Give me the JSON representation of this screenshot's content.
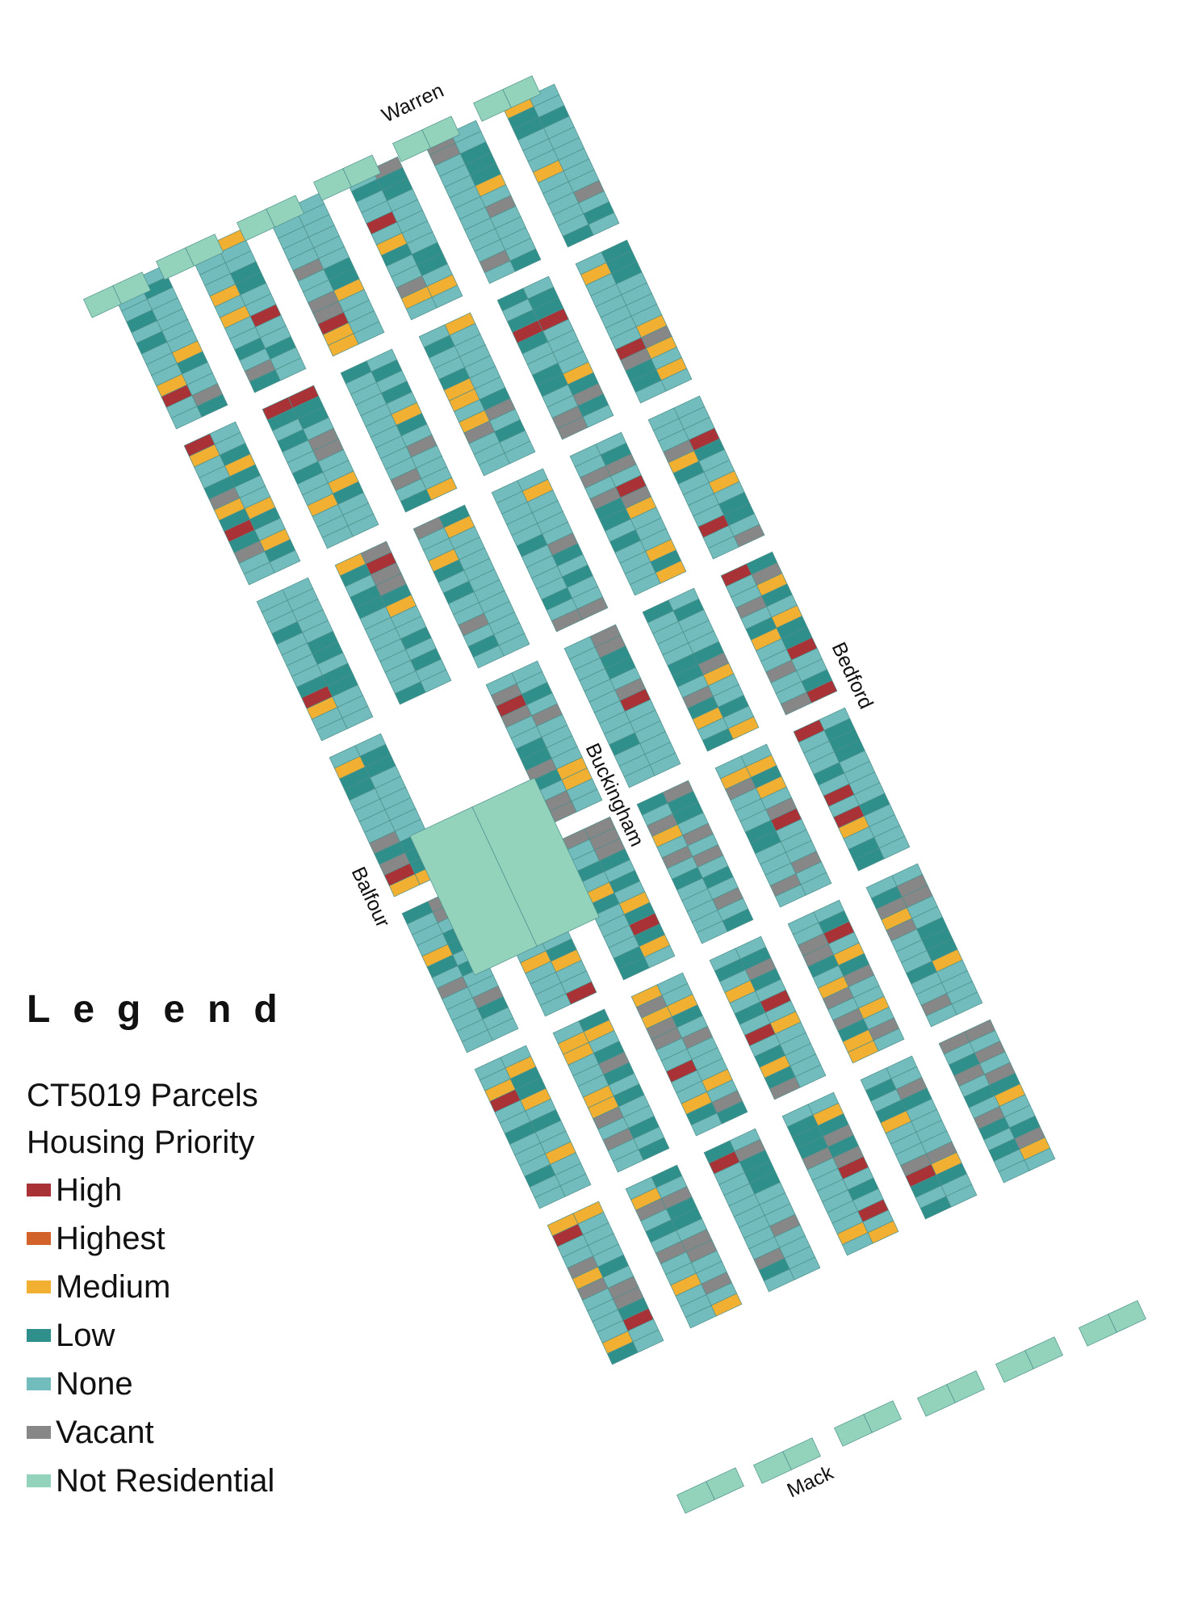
{
  "streets": {
    "warren": "Warren",
    "bedford": "Bedford",
    "buckingham": "Buckingham",
    "balfour": "Balfour",
    "mack": "Mack"
  },
  "legend": {
    "title": "Legend",
    "subtitle_line1": "CT5019 Parcels",
    "subtitle_line2": "Housing Priority",
    "items": [
      {
        "label": "High",
        "color": "#a83236"
      },
      {
        "label": "Highest",
        "color": "#d2622a"
      },
      {
        "label": "Medium",
        "color": "#f1b032"
      },
      {
        "label": "Low",
        "color": "#2e8f8b"
      },
      {
        "label": "None",
        "color": "#72bcbd"
      },
      {
        "label": "Vacant",
        "color": "#878787"
      },
      {
        "label": "Not Residential",
        "color": "#93d3bc"
      }
    ]
  }
}
